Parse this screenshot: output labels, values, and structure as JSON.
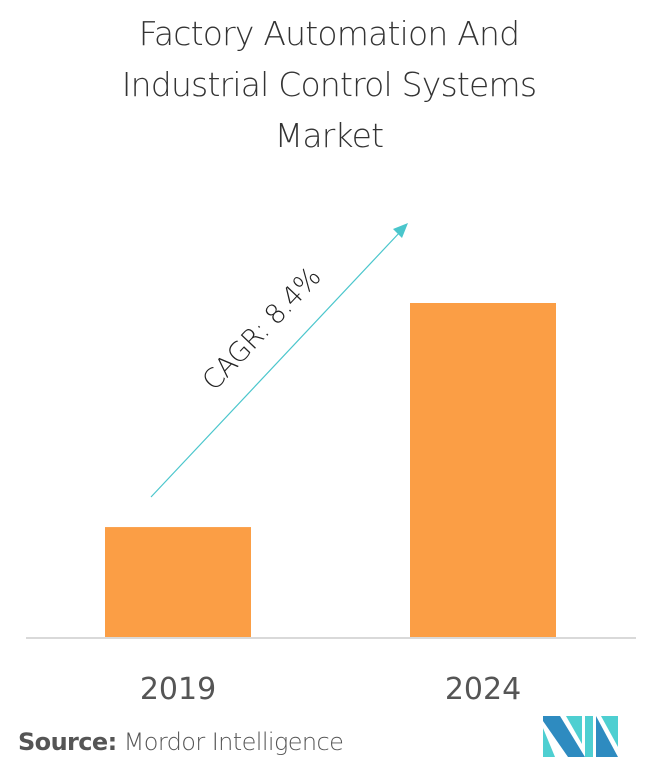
{
  "title_lines": [
    "Factory Automation And",
    "Industrial Control Systems",
    "Market"
  ],
  "colors": {
    "bar": "#fb9e45",
    "axis": "#d9d9d9",
    "arrow": "#4ac6cc",
    "title_text": "#333333",
    "tick_text": "#555555",
    "logo_dark": "#2e8bc0",
    "logo_light": "#4ecfd1"
  },
  "annotation": {
    "cagr_label": "CAGR: 8.4%"
  },
  "source": {
    "label": "Source:",
    "name": "Mordor Intelligence"
  },
  "logo": {
    "icon": "mordor-intelligence-logo-icon"
  },
  "chart_data": {
    "type": "bar",
    "title": "Factory Automation And Industrial Control Systems Market",
    "categories": [
      "2019",
      "2024"
    ],
    "values": [
      1.0,
      3.02
    ],
    "value_note": "relative market size (no axis scale shown); 2024 ≈ 3× 2019",
    "xlabel": "",
    "ylabel": "",
    "ylim": [
      0,
      3.02
    ],
    "grid": false,
    "legend": "none",
    "annotations": [
      {
        "text": "CAGR: 8.4%",
        "type": "arrow",
        "direction": "up-right",
        "from_category": "2019",
        "to_category": "2024"
      }
    ]
  }
}
